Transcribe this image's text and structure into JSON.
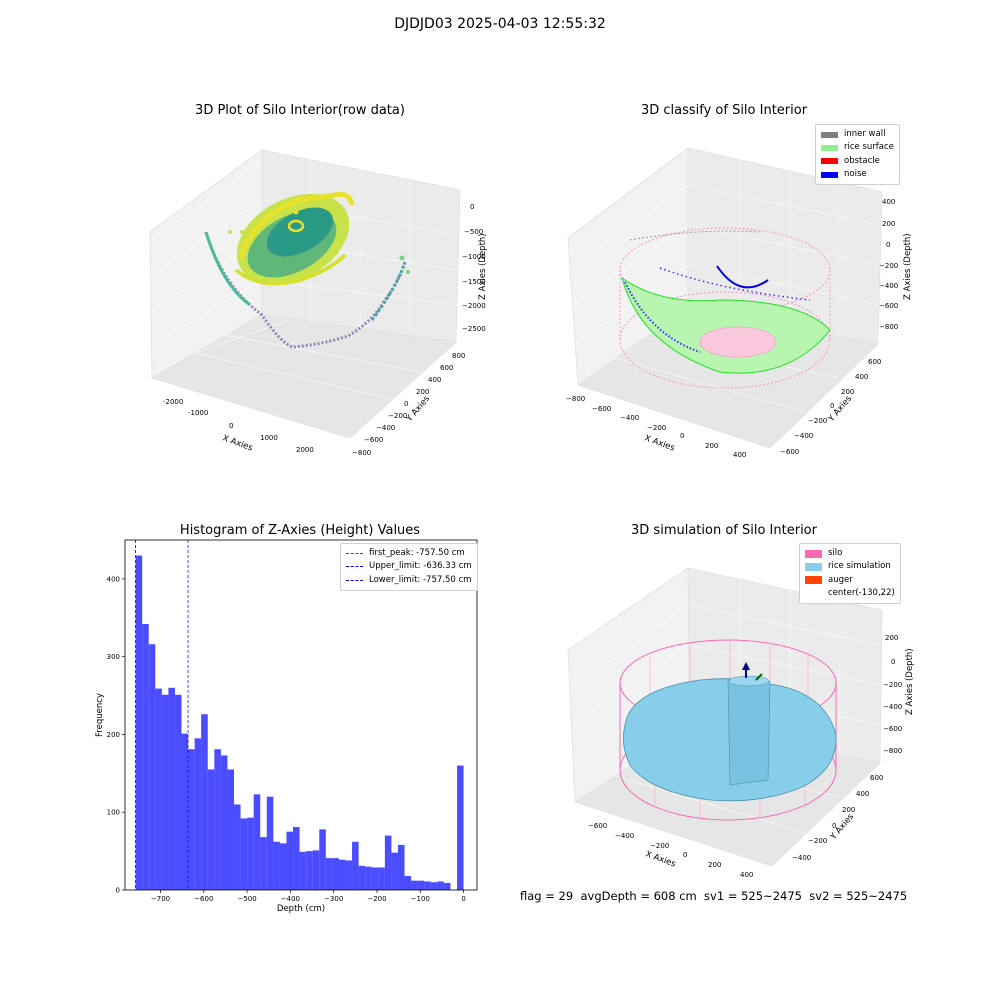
{
  "suptitle": "DJDJD03 2025-04-03 12:55:32",
  "status_text": "flag = 29  avgDepth = 608 cm  sv1 = 525~2475  sv2 = 525~2475",
  "plots": {
    "raw": {
      "title": "3D Plot of Silo Interior(row data)",
      "xlabel": "X Axies",
      "ylabel": "Y Axies",
      "zlabel": "Z Axies (Depth)",
      "xticks": [
        "-2000",
        "-1000",
        "0",
        "1000",
        "2000"
      ],
      "yticks": [
        "800",
        "600",
        "400",
        "200",
        "0",
        "−200",
        "−400",
        "−600",
        "−800"
      ],
      "zticks": [
        "0",
        "−500",
        "−1000",
        "−1500",
        "−2000",
        "−2500"
      ]
    },
    "classify": {
      "title": "3D classify of Silo Interior",
      "xlabel": "X Axies",
      "ylabel": "Y Axies",
      "zlabel": "Z Axies (Depth)",
      "xticks": [
        "−800",
        "−600",
        "−400",
        "−200",
        "0",
        "200",
        "400"
      ],
      "yticks": [
        "600",
        "400",
        "200",
        "0",
        "−200",
        "−400",
        "−600"
      ],
      "zticks": [
        "400",
        "200",
        "0",
        "−200",
        "−400",
        "−600",
        "−800"
      ],
      "legend": [
        {
          "label": "inner wall",
          "color": "#808080"
        },
        {
          "label": "rice surface",
          "color": "#90ee90"
        },
        {
          "label": "obstacle",
          "color": "#ff0000"
        },
        {
          "label": "noise",
          "color": "#0000ff"
        }
      ]
    },
    "simulation": {
      "title": "3D simulation of Silo Interior",
      "xlabel": "X Axies",
      "ylabel": "Y Axies",
      "zlabel": "Z Axies (Depth)",
      "xticks": [
        "−600",
        "−400",
        "−200",
        "0",
        "200",
        "400"
      ],
      "yticks": [
        "600",
        "400",
        "200",
        "0",
        "−200",
        "−400"
      ],
      "zticks": [
        "200",
        "0",
        "−200",
        "−400",
        "−600",
        "−800"
      ],
      "legend": [
        {
          "label": "silo",
          "color": "#ff69b4"
        },
        {
          "label": "rice simulation",
          "color": "#87ceeb"
        },
        {
          "label": "auger",
          "color": "#ff4500"
        },
        {
          "label": "center(-130,22)",
          "color": ""
        }
      ]
    }
  },
  "chart_data": [
    {
      "type": "bar",
      "title": "Histogram of Z-Axies (Height) Values",
      "xlabel": "Depth (cm)",
      "ylabel": "Frequency",
      "xlim": [
        -782,
        31
      ],
      "ylim": [
        0,
        450
      ],
      "xticks": [
        -700,
        -600,
        -500,
        -400,
        -300,
        -200,
        -100,
        0
      ],
      "xtick_labels": [
        "−700",
        "−600",
        "−500",
        "−400",
        "−300",
        "−200",
        "−100",
        "0"
      ],
      "yticks": [
        0,
        100,
        200,
        300,
        400
      ],
      "bin_start": -757.5,
      "bin_width": 15.15,
      "bar_color": "#0000ff",
      "bar_alpha": 0.7,
      "values": [
        430,
        342,
        316,
        259,
        251,
        260,
        251,
        201,
        181,
        195,
        226,
        155,
        181,
        173,
        155,
        110,
        92,
        93,
        123,
        68,
        120,
        62,
        60,
        75,
        81,
        49,
        50,
        51,
        78,
        41,
        41,
        39,
        38,
        62,
        31,
        30,
        29,
        29,
        70,
        48,
        58,
        18,
        12,
        12,
        11,
        10,
        11,
        9,
        0,
        160
      ],
      "vlines": [
        {
          "label": "first_peak: -757.50 cm",
          "x": -757.5,
          "color": "#ff0000"
        },
        {
          "label": "Upper_limit: -636.33 cm",
          "x": -636.33,
          "color": "#0000ff"
        },
        {
          "label": "Lower_limit: -757.50 cm",
          "x": -757.5,
          "color": "#0000ff"
        }
      ]
    }
  ]
}
